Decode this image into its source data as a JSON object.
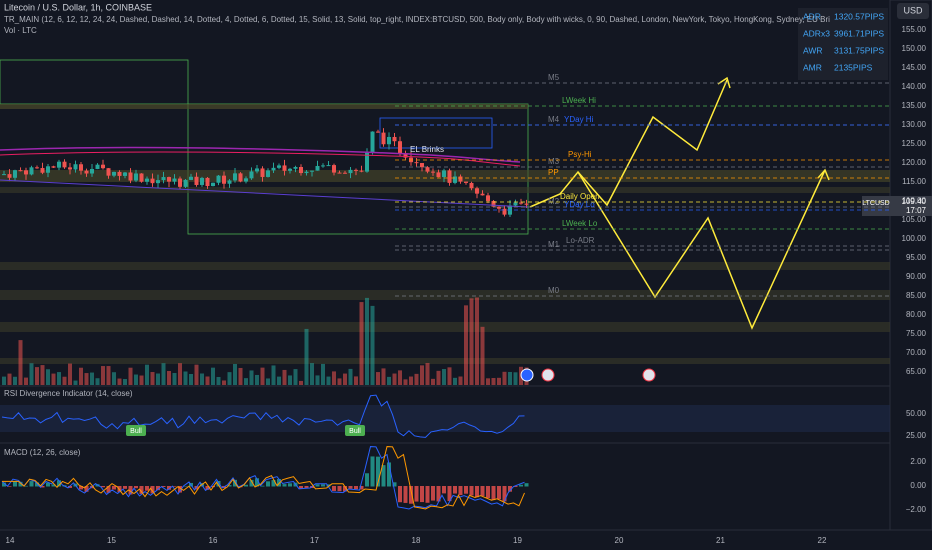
{
  "header": {
    "symbol": "Litecoin / U.S. Dollar, 1h, COINBASE",
    "indicator": "TR_MAIN (12, 6, 12, 12, 24, 24, Dashed, Dashed, 14, Dotted, 4, Dotted, 6, Dotted, 15, Solid, 13, Solid, top_right, INDEX:BTCUSD, 500, Body only, Body with wicks, 0, 90, Dashed, London, NewYork, Tokyo, HongKong, Sydney, EU Bri",
    "volume": "Vol · LTC"
  },
  "currency": "USD",
  "price_axis": [
    "155.00",
    "150.00",
    "145.00",
    "140.00",
    "135.00",
    "130.00",
    "125.00",
    "120.00",
    "115.00",
    "110.00",
    "105.00",
    "100.00",
    "95.00",
    "90.00",
    "85.00",
    "80.00",
    "75.00",
    "70.00",
    "65.00"
  ],
  "current_price": {
    "symbol": "LTCUSD",
    "price": "109.40",
    "countdown": "17:07"
  },
  "info_box": {
    "rows": [
      [
        "ADR",
        "1320.57PIPS"
      ],
      [
        "ADRx3",
        "3961.71PIPS"
      ],
      [
        "AWR",
        "3131.75PIPS"
      ],
      [
        "AMR",
        "2135PIPS"
      ]
    ]
  },
  "levels": [
    "M5",
    "LWeek Hi",
    "M4",
    "YDay Hi",
    "M3",
    "Psy-Hi",
    "PP",
    "M2",
    "Daily Open",
    "YDay Lo",
    "LWeek Lo",
    "M1",
    "Lo-ADR",
    "M0",
    "EL Brinks"
  ],
  "rsi": {
    "title": "RSI Divergence Indicator (14, close)",
    "axis": [
      "50.00",
      "25.00"
    ],
    "signals": [
      "Bull",
      "Bull"
    ]
  },
  "macd": {
    "title": "MACD (12, 26, close)",
    "axis": [
      "2.00",
      "0.00",
      "−2.00"
    ]
  },
  "time_axis": [
    "14",
    "15",
    "16",
    "17",
    "18",
    "19",
    "20",
    "21",
    "22"
  ]
}
